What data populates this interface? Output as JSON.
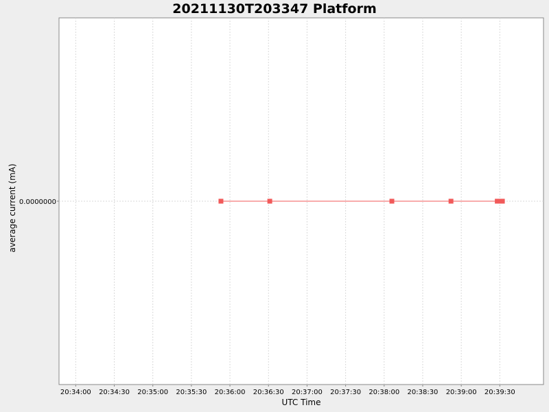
{
  "chart_data": {
    "type": "line",
    "title": "20211130T203347 Platform",
    "xlabel": "UTC Time",
    "ylabel": "average current (mA)",
    "x_ticks": [
      "20:34:00",
      "20:34:30",
      "20:35:00",
      "20:35:30",
      "20:36:00",
      "20:36:30",
      "20:37:00",
      "20:37:30",
      "20:38:00",
      "20:38:30",
      "20:39:00",
      "20:39:30"
    ],
    "xlim": [
      "20:33:47",
      "20:40:04"
    ],
    "y_ticks": [
      "0.0000000"
    ],
    "ylim": [
      -1,
      1
    ],
    "grid": true,
    "legend": "none",
    "series": [
      {
        "color": "#f15a5a",
        "marker": "square",
        "points": [
          {
            "x": "20:35:53",
            "y": 0
          },
          {
            "x": "20:36:31",
            "y": 0
          },
          {
            "x": "20:38:06",
            "y": 0
          },
          {
            "x": "20:38:52",
            "y": 0
          },
          {
            "x": "20:39:28",
            "y": 0
          },
          {
            "x": "20:39:30",
            "y": 0
          },
          {
            "x": "20:39:32",
            "y": 0
          }
        ]
      }
    ]
  },
  "colors": {
    "background": "#eeeeee",
    "plot_background": "#ffffff",
    "grid": "#d9d9d9",
    "axis": "#888888"
  }
}
